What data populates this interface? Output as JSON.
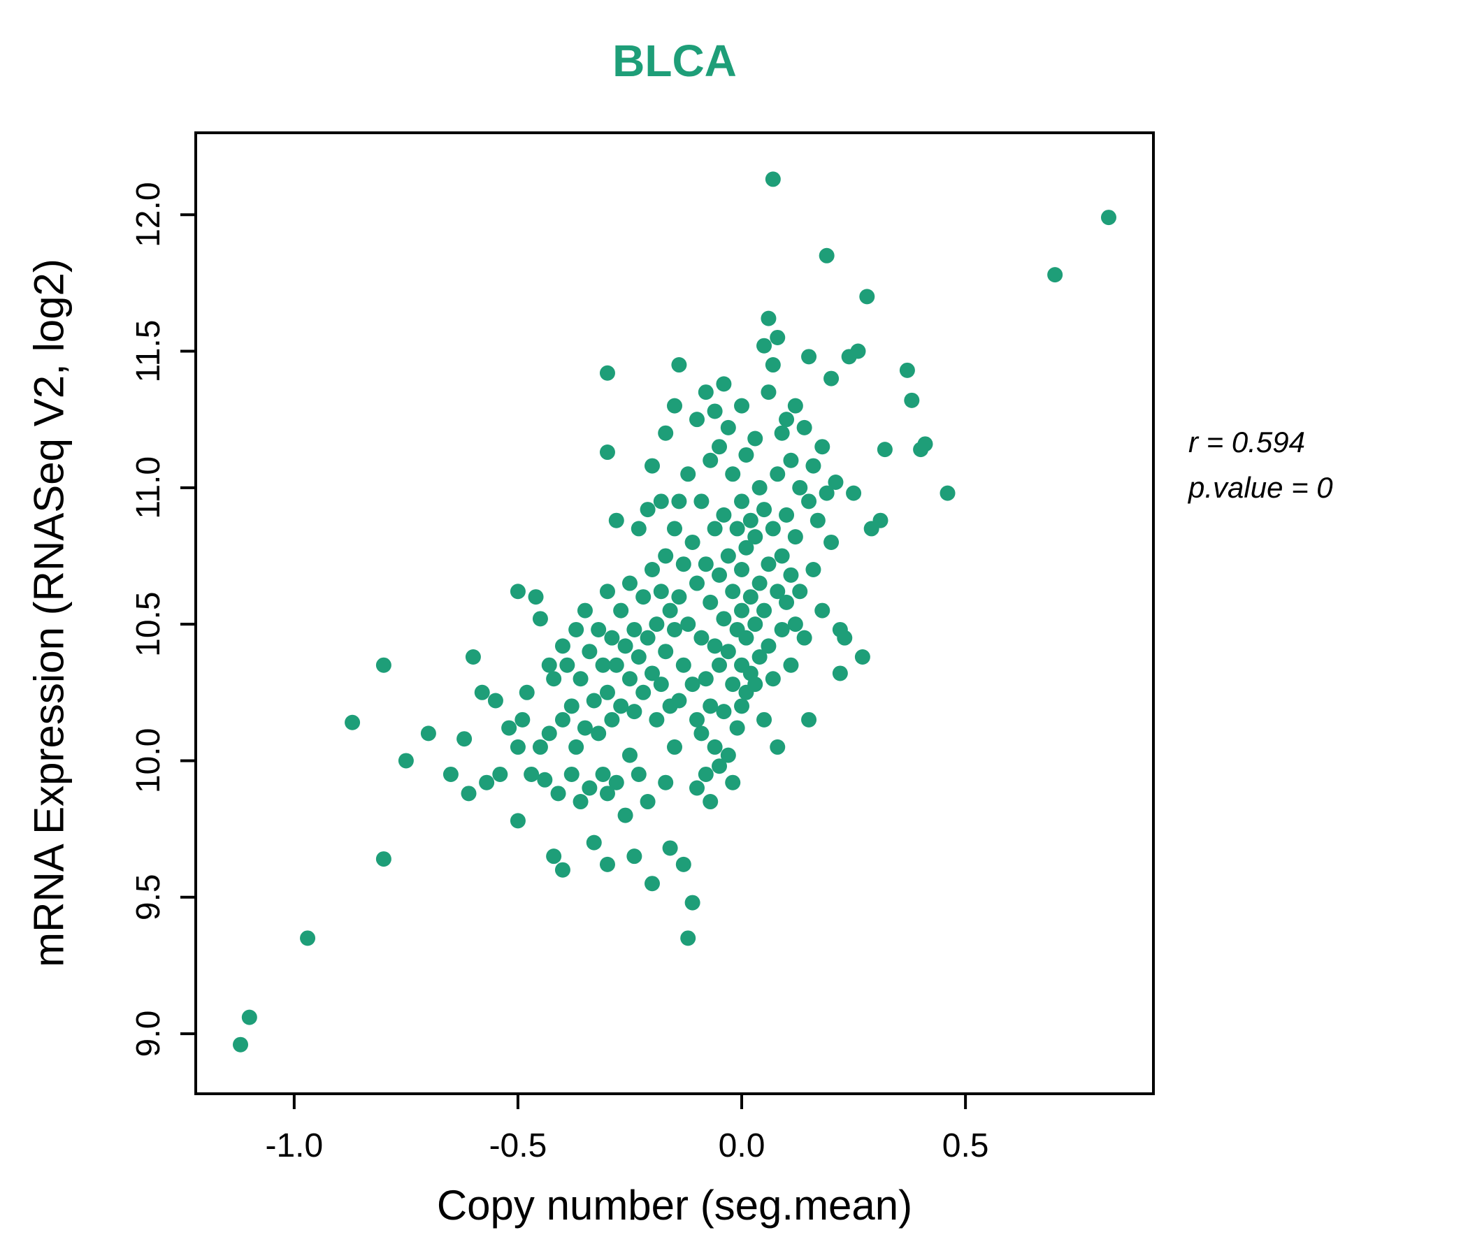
{
  "title": "BLCA",
  "accent_color": "#1e9e78",
  "annotation": {
    "line1": "r = 0.594",
    "line2": "p.value = 0"
  },
  "chart_data": {
    "type": "scatter",
    "title": "BLCA",
    "xlabel": "Copy number (seg.mean)",
    "ylabel": "mRNA Expression (RNASeq V2, log2)",
    "x_ticks": [
      -1.0,
      -0.5,
      0.0,
      0.5
    ],
    "y_ticks": [
      9.0,
      9.5,
      10.0,
      10.5,
      11.0,
      11.5,
      12.0
    ],
    "xlim": [
      -1.22,
      0.92
    ],
    "ylim": [
      8.78,
      12.3
    ],
    "legend": "none",
    "grid": false,
    "r": 0.594,
    "p_value": 0,
    "point_color": "#1e9e78",
    "points": [
      [
        -1.12,
        8.96
      ],
      [
        -1.1,
        9.06
      ],
      [
        -0.97,
        9.35
      ],
      [
        -0.87,
        10.14
      ],
      [
        -0.8,
        10.35
      ],
      [
        -0.8,
        9.64
      ],
      [
        -0.75,
        10.0
      ],
      [
        -0.7,
        10.1
      ],
      [
        -0.65,
        9.95
      ],
      [
        -0.62,
        10.08
      ],
      [
        -0.61,
        9.88
      ],
      [
        -0.6,
        10.38
      ],
      [
        -0.58,
        10.25
      ],
      [
        -0.57,
        9.92
      ],
      [
        -0.55,
        10.22
      ],
      [
        -0.54,
        9.95
      ],
      [
        -0.52,
        10.12
      ],
      [
        -0.5,
        10.62
      ],
      [
        -0.5,
        10.05
      ],
      [
        -0.5,
        9.78
      ],
      [
        -0.49,
        10.15
      ],
      [
        -0.48,
        10.25
      ],
      [
        -0.47,
        9.95
      ],
      [
        -0.46,
        10.6
      ],
      [
        -0.45,
        10.52
      ],
      [
        -0.45,
        10.05
      ],
      [
        -0.44,
        9.93
      ],
      [
        -0.43,
        10.35
      ],
      [
        -0.43,
        10.1
      ],
      [
        -0.42,
        9.65
      ],
      [
        -0.42,
        10.3
      ],
      [
        -0.41,
        9.88
      ],
      [
        -0.4,
        10.42
      ],
      [
        -0.4,
        10.15
      ],
      [
        -0.4,
        9.6
      ],
      [
        -0.39,
        10.35
      ],
      [
        -0.38,
        10.2
      ],
      [
        -0.38,
        9.95
      ],
      [
        -0.37,
        10.48
      ],
      [
        -0.37,
        10.05
      ],
      [
        -0.36,
        9.85
      ],
      [
        -0.36,
        10.3
      ],
      [
        -0.35,
        10.55
      ],
      [
        -0.35,
        10.12
      ],
      [
        -0.34,
        9.9
      ],
      [
        -0.34,
        10.4
      ],
      [
        -0.33,
        10.22
      ],
      [
        -0.33,
        9.7
      ],
      [
        -0.32,
        10.48
      ],
      [
        -0.32,
        10.1
      ],
      [
        -0.31,
        9.95
      ],
      [
        -0.31,
        10.35
      ],
      [
        -0.3,
        11.42
      ],
      [
        -0.3,
        11.13
      ],
      [
        -0.3,
        10.62
      ],
      [
        -0.3,
        10.25
      ],
      [
        -0.3,
        9.88
      ],
      [
        -0.3,
        9.62
      ],
      [
        -0.29,
        10.45
      ],
      [
        -0.29,
        10.15
      ],
      [
        -0.28,
        10.88
      ],
      [
        -0.28,
        10.35
      ],
      [
        -0.28,
        9.92
      ],
      [
        -0.27,
        10.55
      ],
      [
        -0.27,
        10.2
      ],
      [
        -0.26,
        10.42
      ],
      [
        -0.26,
        9.8
      ],
      [
        -0.25,
        10.65
      ],
      [
        -0.25,
        10.3
      ],
      [
        -0.25,
        10.02
      ],
      [
        -0.24,
        10.48
      ],
      [
        -0.24,
        10.18
      ],
      [
        -0.24,
        9.65
      ],
      [
        -0.23,
        10.85
      ],
      [
        -0.23,
        10.38
      ],
      [
        -0.23,
        9.95
      ],
      [
        -0.22,
        10.6
      ],
      [
        -0.22,
        10.25
      ],
      [
        -0.21,
        10.92
      ],
      [
        -0.21,
        10.45
      ],
      [
        -0.21,
        9.85
      ],
      [
        -0.2,
        11.08
      ],
      [
        -0.2,
        10.7
      ],
      [
        -0.2,
        10.32
      ],
      [
        -0.2,
        9.55
      ],
      [
        -0.19,
        10.5
      ],
      [
        -0.19,
        10.15
      ],
      [
        -0.18,
        10.95
      ],
      [
        -0.18,
        10.62
      ],
      [
        -0.18,
        10.28
      ],
      [
        -0.17,
        11.2
      ],
      [
        -0.17,
        10.75
      ],
      [
        -0.17,
        10.4
      ],
      [
        -0.17,
        9.92
      ],
      [
        -0.16,
        10.55
      ],
      [
        -0.16,
        10.2
      ],
      [
        -0.16,
        9.68
      ],
      [
        -0.15,
        11.3
      ],
      [
        -0.15,
        10.85
      ],
      [
        -0.15,
        10.48
      ],
      [
        -0.15,
        10.05
      ],
      [
        -0.14,
        11.45
      ],
      [
        -0.14,
        10.95
      ],
      [
        -0.14,
        10.6
      ],
      [
        -0.14,
        10.22
      ],
      [
        -0.13,
        10.72
      ],
      [
        -0.13,
        10.35
      ],
      [
        -0.13,
        9.62
      ],
      [
        -0.12,
        11.05
      ],
      [
        -0.12,
        10.5
      ],
      [
        -0.12,
        9.35
      ],
      [
        -0.11,
        10.8
      ],
      [
        -0.11,
        10.28
      ],
      [
        -0.11,
        9.48
      ],
      [
        -0.1,
        11.25
      ],
      [
        -0.1,
        10.65
      ],
      [
        -0.1,
        10.15
      ],
      [
        -0.1,
        9.9
      ],
      [
        -0.09,
        10.95
      ],
      [
        -0.09,
        10.45
      ],
      [
        -0.09,
        10.1
      ],
      [
        -0.08,
        11.35
      ],
      [
        -0.08,
        10.72
      ],
      [
        -0.08,
        10.3
      ],
      [
        -0.08,
        9.95
      ],
      [
        -0.07,
        11.1
      ],
      [
        -0.07,
        10.58
      ],
      [
        -0.07,
        10.2
      ],
      [
        -0.07,
        9.85
      ],
      [
        -0.06,
        11.28
      ],
      [
        -0.06,
        10.85
      ],
      [
        -0.06,
        10.42
      ],
      [
        -0.06,
        10.05
      ],
      [
        -0.05,
        11.15
      ],
      [
        -0.05,
        10.68
      ],
      [
        -0.05,
        10.35
      ],
      [
        -0.05,
        9.98
      ],
      [
        -0.04,
        11.38
      ],
      [
        -0.04,
        10.9
      ],
      [
        -0.04,
        10.52
      ],
      [
        -0.04,
        10.18
      ],
      [
        -0.03,
        11.22
      ],
      [
        -0.03,
        10.75
      ],
      [
        -0.03,
        10.4
      ],
      [
        -0.03,
        10.02
      ],
      [
        -0.02,
        11.05
      ],
      [
        -0.02,
        10.62
      ],
      [
        -0.02,
        10.28
      ],
      [
        -0.02,
        9.92
      ],
      [
        -0.01,
        10.85
      ],
      [
        -0.01,
        10.48
      ],
      [
        -0.01,
        10.12
      ],
      [
        0.0,
        11.3
      ],
      [
        0.0,
        10.95
      ],
      [
        0.0,
        10.7
      ],
      [
        0.0,
        10.55
      ],
      [
        0.0,
        10.35
      ],
      [
        0.0,
        10.2
      ],
      [
        0.01,
        11.12
      ],
      [
        0.01,
        10.78
      ],
      [
        0.01,
        10.45
      ],
      [
        0.01,
        10.25
      ],
      [
        0.02,
        10.88
      ],
      [
        0.02,
        10.6
      ],
      [
        0.02,
        10.32
      ],
      [
        0.03,
        11.18
      ],
      [
        0.03,
        10.82
      ],
      [
        0.03,
        10.5
      ],
      [
        0.03,
        10.28
      ],
      [
        0.04,
        11.0
      ],
      [
        0.04,
        10.65
      ],
      [
        0.04,
        10.38
      ],
      [
        0.05,
        11.52
      ],
      [
        0.05,
        10.92
      ],
      [
        0.05,
        10.55
      ],
      [
        0.05,
        10.15
      ],
      [
        0.06,
        11.62
      ],
      [
        0.06,
        11.35
      ],
      [
        0.06,
        10.72
      ],
      [
        0.06,
        10.42
      ],
      [
        0.07,
        12.13
      ],
      [
        0.07,
        11.45
      ],
      [
        0.07,
        10.85
      ],
      [
        0.07,
        10.3
      ],
      [
        0.08,
        11.55
      ],
      [
        0.08,
        11.05
      ],
      [
        0.08,
        10.62
      ],
      [
        0.08,
        10.05
      ],
      [
        0.09,
        11.2
      ],
      [
        0.09,
        10.75
      ],
      [
        0.09,
        10.48
      ],
      [
        0.1,
        11.25
      ],
      [
        0.1,
        10.9
      ],
      [
        0.1,
        10.58
      ],
      [
        0.11,
        11.1
      ],
      [
        0.11,
        10.68
      ],
      [
        0.11,
        10.35
      ],
      [
        0.12,
        11.3
      ],
      [
        0.12,
        10.82
      ],
      [
        0.12,
        10.5
      ],
      [
        0.13,
        11.0
      ],
      [
        0.13,
        10.62
      ],
      [
        0.14,
        11.22
      ],
      [
        0.14,
        10.45
      ],
      [
        0.15,
        11.48
      ],
      [
        0.15,
        10.95
      ],
      [
        0.15,
        10.15
      ],
      [
        0.16,
        11.08
      ],
      [
        0.16,
        10.7
      ],
      [
        0.17,
        10.88
      ],
      [
        0.18,
        11.15
      ],
      [
        0.18,
        10.55
      ],
      [
        0.19,
        11.85
      ],
      [
        0.19,
        10.98
      ],
      [
        0.2,
        11.4
      ],
      [
        0.2,
        10.8
      ],
      [
        0.21,
        11.02
      ],
      [
        0.22,
        10.48
      ],
      [
        0.22,
        10.32
      ],
      [
        0.23,
        10.45
      ],
      [
        0.24,
        11.48
      ],
      [
        0.25,
        10.98
      ],
      [
        0.26,
        11.5
      ],
      [
        0.27,
        10.38
      ],
      [
        0.28,
        11.7
      ],
      [
        0.29,
        10.85
      ],
      [
        0.31,
        10.88
      ],
      [
        0.32,
        11.14
      ],
      [
        0.37,
        11.43
      ],
      [
        0.38,
        11.32
      ],
      [
        0.4,
        11.14
      ],
      [
        0.41,
        11.16
      ],
      [
        0.46,
        10.98
      ],
      [
        0.7,
        11.78
      ],
      [
        0.82,
        11.99
      ]
    ]
  }
}
